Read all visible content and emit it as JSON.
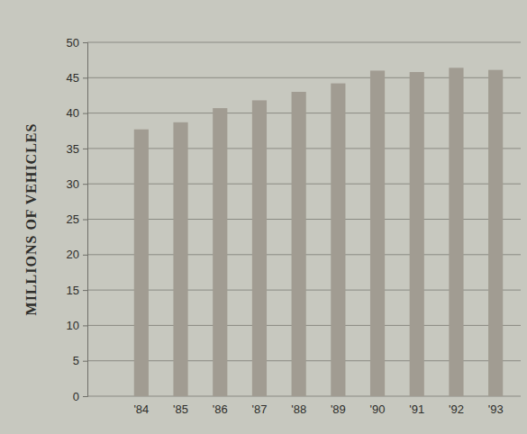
{
  "chart_data": {
    "type": "bar",
    "y_label": "MILLIONS OF VEHICLES",
    "categories": [
      "'84",
      "'85",
      "'86",
      "'87",
      "'88",
      "'89",
      "'90",
      "'91",
      "'92",
      "'93"
    ],
    "values": [
      37.7,
      38.7,
      40.7,
      41.8,
      43.0,
      44.2,
      46.0,
      45.8,
      46.4,
      46.1
    ],
    "color": "#a19c92",
    "ylim": [
      0,
      50
    ],
    "yticks": [
      0,
      5,
      10,
      15,
      20,
      25,
      30,
      35,
      40,
      45,
      50
    ],
    "grid": true
  }
}
